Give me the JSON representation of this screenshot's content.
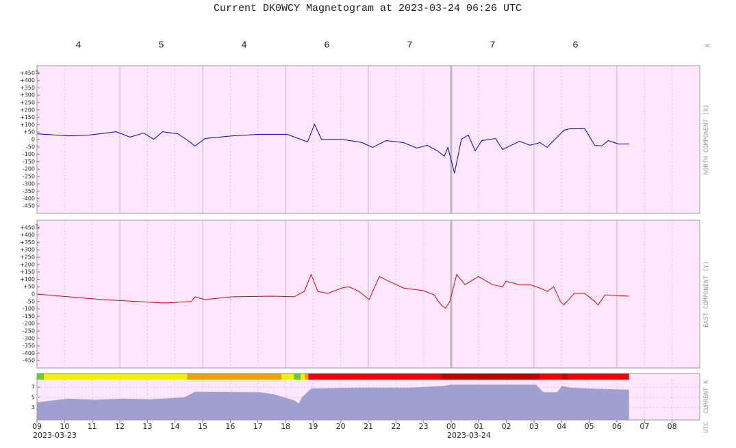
{
  "chart_data": [
    {
      "type": "line",
      "title": "Current DK0WCY Magnetogram at 2023-03-24 06:26 UTC",
      "k_label": "K",
      "k_index": {
        "x": [
          1.5,
          4.5,
          7.5,
          10.5,
          13.5,
          16.5,
          19.5
        ],
        "values": [
          4,
          5,
          4,
          6,
          7,
          7,
          6
        ]
      },
      "ylabel": "NORTH COMPONENT (X)",
      "yunit": "nT",
      "xlim": [
        0,
        24
      ],
      "ylim": [
        -500,
        500
      ],
      "yticks": [
        {
          "value": 450,
          "label": "+450"
        },
        {
          "value": 400,
          "label": "+400"
        },
        {
          "value": 350,
          "label": "+350"
        },
        {
          "value": 300,
          "label": "+300"
        },
        {
          "value": 250,
          "label": "+250"
        },
        {
          "value": 200,
          "label": "+200"
        },
        {
          "value": 150,
          "label": "+150"
        },
        {
          "value": 100,
          "label": "+100"
        },
        {
          "value": 50,
          "label": "+50"
        },
        0,
        -50,
        -100,
        -150,
        -200,
        -250,
        -300,
        -350,
        -400,
        -450
      ],
      "xgrid": true,
      "background": "#ffe6ff",
      "series": [
        {
          "color": "#0000cc",
          "x": [
            0,
            1.14,
            1.88,
            2.87,
            3.37,
            3.86,
            4.23,
            4.55,
            5.1,
            5.47,
            5.72,
            6.09,
            7.08,
            8.07,
            9.06,
            9.8,
            10.05,
            10.3,
            11.04,
            11.78,
            12.15,
            12.65,
            13.27,
            13.76,
            14.13,
            14.5,
            14.75,
            14.88,
            15.12,
            15.37,
            15.62,
            15.87,
            16.11,
            16.61,
            16.86,
            17.48,
            17.85,
            18.22,
            18.47,
            19.08,
            19.33,
            19.83,
            20.2,
            20.45,
            20.69,
            21.06,
            21.44
          ],
          "values": [
            39,
            25,
            30,
            53,
            16,
            44,
            2,
            53,
            39,
            -7,
            -44,
            7,
            25,
            35,
            35,
            -16,
            104,
            2,
            2,
            -21,
            -53,
            -7,
            -21,
            -58,
            -39,
            -76,
            -113,
            -53,
            -228,
            2,
            30,
            -76,
            -7,
            7,
            -67,
            -12,
            -39,
            -21,
            -53,
            62,
            76,
            76,
            -39,
            -44,
            -7,
            -30,
            -30
          ]
        }
      ]
    },
    {
      "type": "line",
      "ylabel": "EAST COMPONENT (Y)",
      "yunit": "nT",
      "xlim": [
        0,
        24
      ],
      "ylim": [
        -500,
        500
      ],
      "yticks": [
        {
          "value": 450,
          "label": "+450"
        },
        {
          "value": 400,
          "label": "+400"
        },
        {
          "value": 350,
          "label": "+350"
        },
        {
          "value": 300,
          "label": "+300"
        },
        {
          "value": 250,
          "label": "+250"
        },
        {
          "value": 200,
          "label": "+200"
        },
        {
          "value": 150,
          "label": "+150"
        },
        {
          "value": 100,
          "label": "+100"
        },
        {
          "value": 50,
          "label": "+50"
        },
        0,
        -50,
        -100,
        -150,
        -200,
        -250,
        -300,
        -350,
        -400,
        -450
      ],
      "xgrid": true,
      "background": "#ffe6ff",
      "series": [
        {
          "color": "#dd0000",
          "x": [
            0,
            1.14,
            2.38,
            3.61,
            4.6,
            5.59,
            5.72,
            6.09,
            7.08,
            8.56,
            9.31,
            9.68,
            9.93,
            10.17,
            10.54,
            11.04,
            11.29,
            11.66,
            12.03,
            12.4,
            12.65,
            13.27,
            14.01,
            14.38,
            14.63,
            14.8,
            14.95,
            15.2,
            15.5,
            15.99,
            16.49,
            16.86,
            16.98,
            17.48,
            17.85,
            18.22,
            18.47,
            18.71,
            18.96,
            19.08,
            19.46,
            19.83,
            20.2,
            20.32,
            20.57,
            21.44
          ],
          "values": [
            0,
            -18,
            -37,
            -50,
            -60,
            -50,
            -18,
            -37,
            -18,
            -14,
            -18,
            18,
            133,
            18,
            5,
            41,
            50,
            18,
            -37,
            119,
            96,
            41,
            23,
            -5,
            -73,
            -96,
            -50,
            133,
            64,
            119,
            64,
            50,
            87,
            64,
            64,
            41,
            18,
            50,
            -50,
            -73,
            5,
            5,
            -50,
            -73,
            -5,
            -14
          ]
        }
      ]
    },
    {
      "type": "area",
      "ylabel": "CURRENT K",
      "xlabel": "UTC",
      "xlim": [
        0,
        24
      ],
      "ylim": [
        0.5,
        8.5
      ],
      "yticks": [
        3,
        5,
        7
      ],
      "grid": true,
      "background": "#ffe6ff",
      "band": [
        {
          "start": 0,
          "end": 0.25,
          "color": "#66cc33"
        },
        {
          "start": 0.25,
          "end": 5.44,
          "color": "#f0f000"
        },
        {
          "start": 5.44,
          "end": 8.86,
          "color": "#f0a000"
        },
        {
          "start": 8.86,
          "end": 9.31,
          "color": "#f0f000"
        },
        {
          "start": 9.31,
          "end": 9.55,
          "color": "#66cc33"
        },
        {
          "start": 9.55,
          "end": 9.7,
          "color": "#f0f000"
        },
        {
          "start": 9.7,
          "end": 9.83,
          "color": "#f0a000"
        },
        {
          "start": 9.83,
          "end": 14.63,
          "color": "#f00000"
        },
        {
          "start": 14.63,
          "end": 18.22,
          "color": "#c00000"
        },
        {
          "start": 18.22,
          "end": 19.0,
          "color": "#f00000"
        },
        {
          "start": 19.0,
          "end": 19.23,
          "color": "#c00000"
        },
        {
          "start": 19.23,
          "end": 21.44,
          "color": "#f00000"
        }
      ],
      "series": [
        {
          "color": "#a0a0d0",
          "x": [
            0,
            1.14,
            2.14,
            3.12,
            4.11,
            5.35,
            5.72,
            8.07,
            8.56,
            8.81,
            9.31,
            9.48,
            9.6,
            9.93,
            11.53,
            13.51,
            14.7,
            15.0,
            18.07,
            18.34,
            18.84,
            19.0,
            19.33,
            19.95,
            21.44
          ],
          "values": [
            4.0,
            4.75,
            4.5,
            4.75,
            4.6,
            5.0,
            6.1,
            6.0,
            5.6,
            5.2,
            4.4,
            3.75,
            5.0,
            6.75,
            6.9,
            6.9,
            7.25,
            7.5,
            7.5,
            6.0,
            6.0,
            7.25,
            6.9,
            6.75,
            6.5
          ]
        }
      ],
      "xticks": [
        {
          "value": 0,
          "label": "09"
        },
        {
          "value": 1,
          "label": "10"
        },
        {
          "value": 2,
          "label": "11"
        },
        {
          "value": 3,
          "label": "12"
        },
        {
          "value": 4,
          "label": "13"
        },
        {
          "value": 5,
          "label": "14"
        },
        {
          "value": 6,
          "label": "15"
        },
        {
          "value": 7,
          "label": "16"
        },
        {
          "value": 8,
          "label": "17"
        },
        {
          "value": 9,
          "label": "18"
        },
        {
          "value": 10,
          "label": "19"
        },
        {
          "value": 11,
          "label": "20"
        },
        {
          "value": 12,
          "label": "21"
        },
        {
          "value": 13,
          "label": "22"
        },
        {
          "value": 14,
          "label": "23"
        },
        {
          "value": 15,
          "label": "00"
        },
        {
          "value": 16,
          "label": "01"
        },
        {
          "value": 17,
          "label": "02"
        },
        {
          "value": 18,
          "label": "03"
        },
        {
          "value": 19,
          "label": "04"
        },
        {
          "value": 20,
          "label": "05"
        },
        {
          "value": 21,
          "label": "06"
        },
        {
          "value": 22,
          "label": "07"
        },
        {
          "value": 23,
          "label": "08"
        }
      ],
      "dates": [
        {
          "x": 0,
          "label": "2023-03-23"
        },
        {
          "x": 15,
          "label": "2023-03-24"
        }
      ]
    }
  ]
}
